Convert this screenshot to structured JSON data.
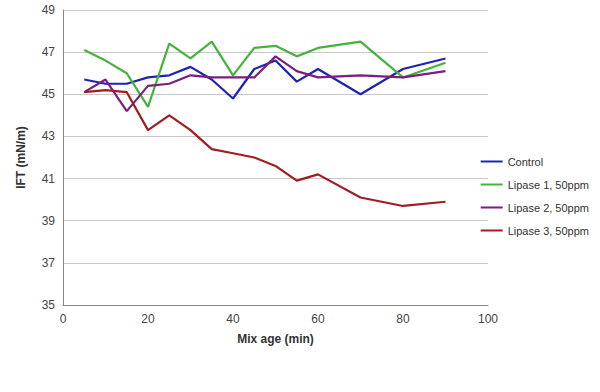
{
  "chart_data": {
    "type": "line",
    "x_label": "Mix age (min)",
    "y_label": "IFT (mN/m)",
    "x": [
      5,
      10,
      15,
      20,
      25,
      30,
      35,
      40,
      45,
      50,
      55,
      60,
      70,
      80,
      90
    ],
    "series": [
      {
        "name": "Control",
        "color": "#1f22b4",
        "values": [
          45.7,
          45.5,
          45.5,
          45.8,
          45.9,
          46.3,
          45.7,
          44.8,
          46.2,
          46.6,
          45.6,
          46.2,
          45.0,
          46.2,
          46.7
        ]
      },
      {
        "name": "Lipase 1, 50ppm",
        "color": "#44b33c",
        "values": [
          47.1,
          46.6,
          46.0,
          44.4,
          47.4,
          46.7,
          47.5,
          45.9,
          47.2,
          47.3,
          46.8,
          47.2,
          47.5,
          45.8,
          46.5
        ]
      },
      {
        "name": "Lipase 2, 50ppm",
        "color": "#7a1f7e",
        "values": [
          45.1,
          45.7,
          44.2,
          45.4,
          45.5,
          45.9,
          45.8,
          45.8,
          45.8,
          46.8,
          46.1,
          45.8,
          45.9,
          45.8,
          46.1
        ]
      },
      {
        "name": "Lipase 3, 50ppm",
        "color": "#a01d22",
        "values": [
          45.1,
          45.2,
          45.1,
          43.3,
          44.0,
          43.3,
          42.4,
          42.2,
          42.0,
          41.6,
          40.9,
          41.2,
          40.1,
          39.7,
          39.9
        ]
      }
    ],
    "xlim": [
      0,
      100
    ],
    "xticks": [
      0,
      20,
      40,
      60,
      80,
      100
    ],
    "ylim": [
      35,
      49
    ],
    "yticks": [
      35,
      37,
      39,
      41,
      43,
      45,
      47,
      49
    ],
    "grid": true,
    "legend": "right",
    "marker": "none"
  }
}
